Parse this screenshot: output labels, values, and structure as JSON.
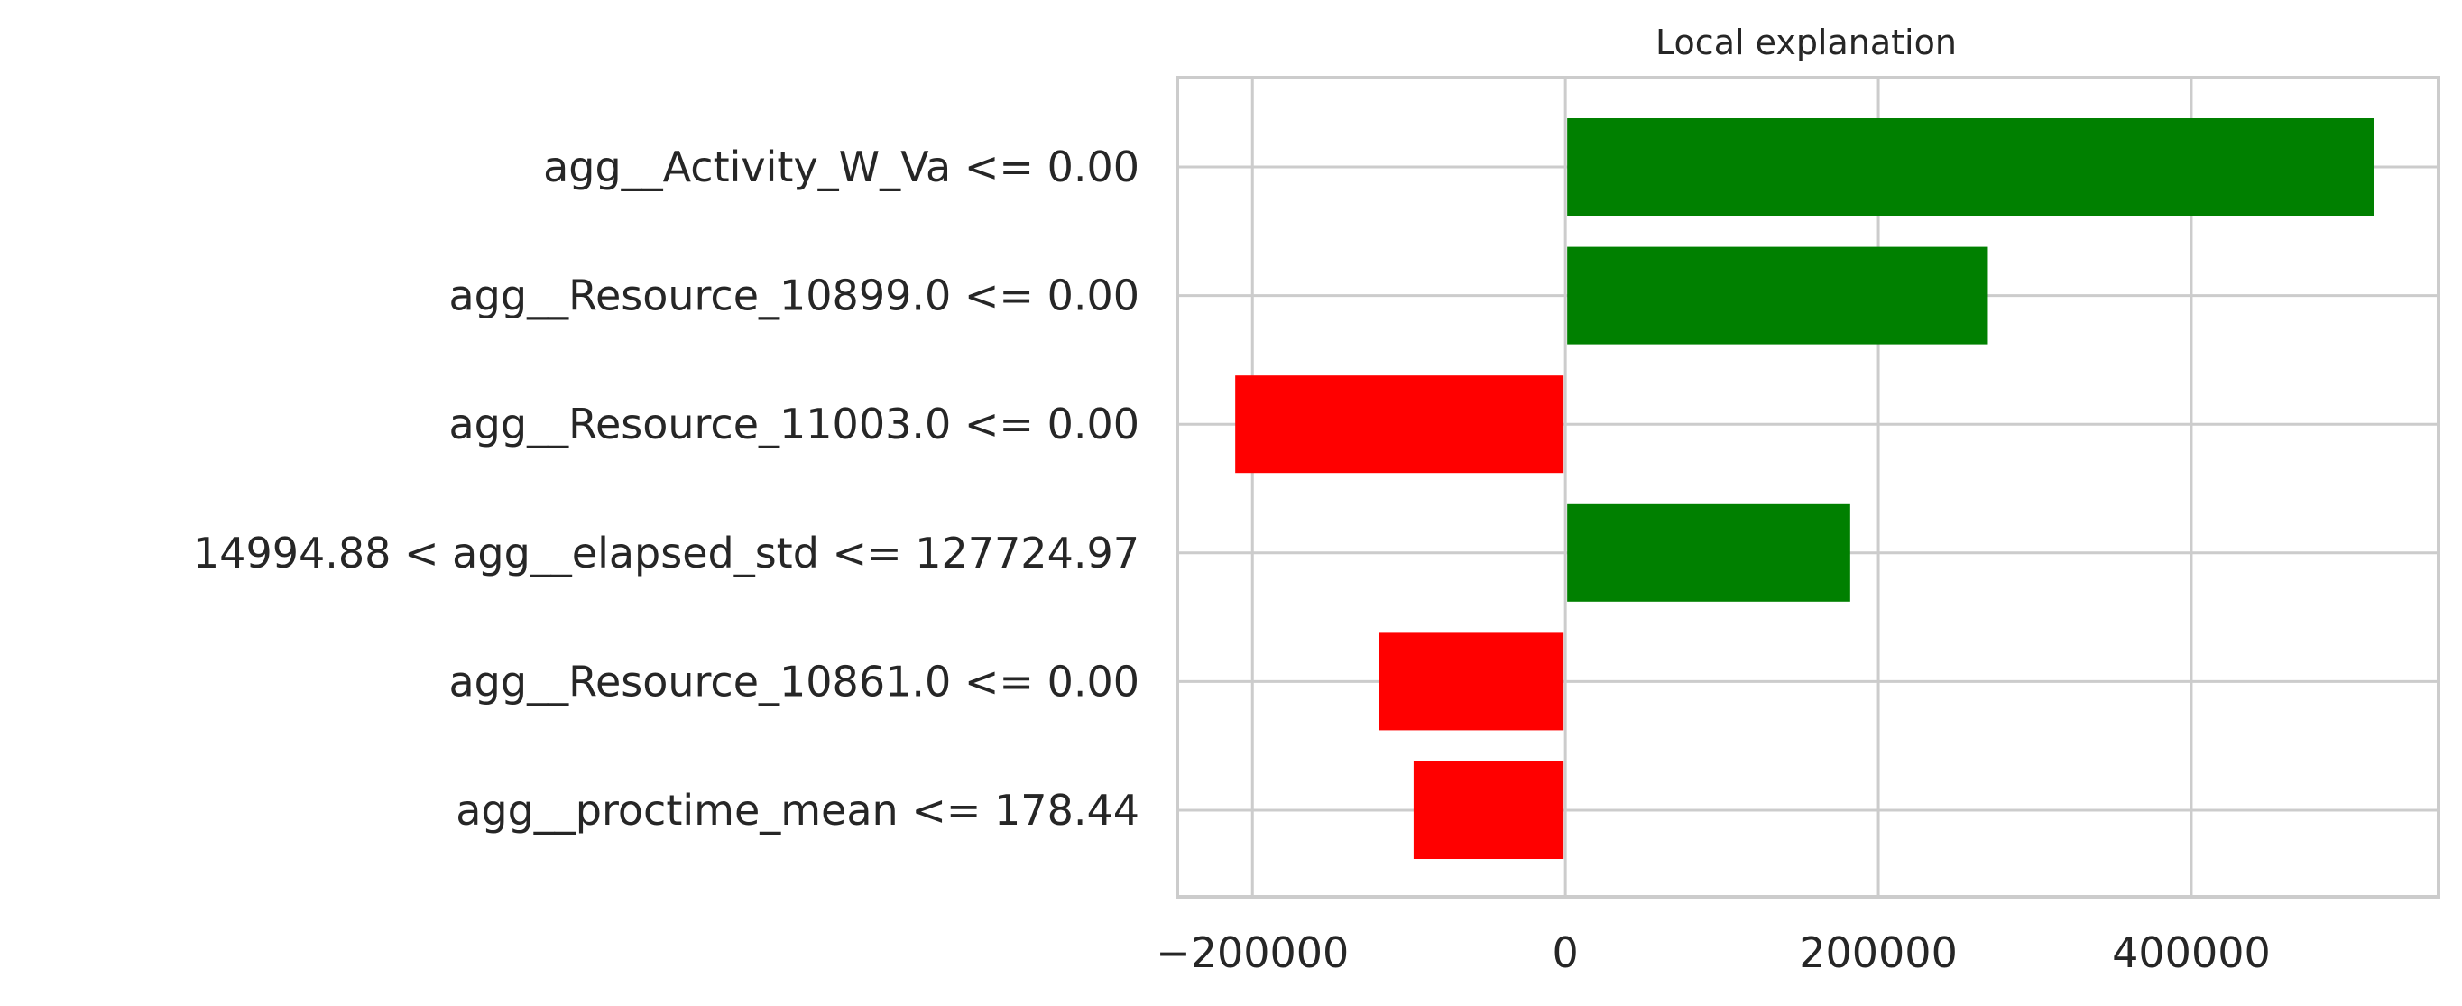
{
  "chart_data": {
    "type": "bar",
    "orientation": "horizontal",
    "title": "Local explanation",
    "xlabel": "",
    "ylabel": "",
    "categories": [
      "agg__Activity_W_Va <= 0.00",
      "agg__Resource_10899.0 <= 0.00",
      "agg__Resource_11003.0 <= 0.00",
      "14994.88 < agg__elapsed_std <= 127724.97",
      "agg__Resource_10861.0 <= 0.00",
      "agg__proctime_mean <= 178.44"
    ],
    "values": [
      517000,
      270000,
      -211000,
      182000,
      -119000,
      -97000
    ],
    "colors": {
      "positive": "#008000",
      "negative": "#ff0000"
    },
    "xlim": [
      -248000,
      558000
    ],
    "xticks": [
      -200000,
      0,
      200000,
      400000
    ],
    "xtick_labels": [
      "−200000",
      "0",
      "200000",
      "400000"
    ],
    "grid": true,
    "legend": "none"
  }
}
